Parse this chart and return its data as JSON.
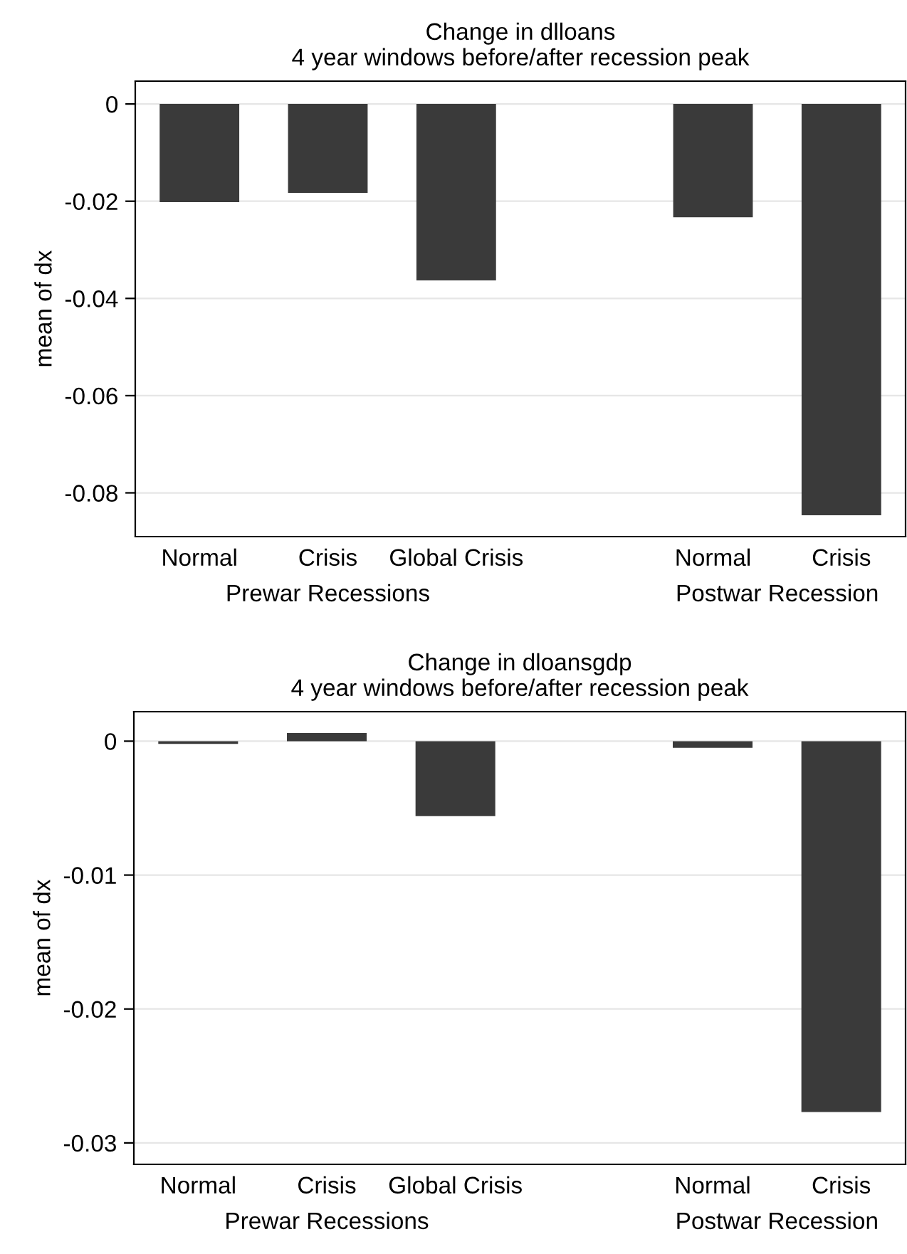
{
  "chart_data": [
    {
      "type": "bar",
      "title": "Change in dlloans\n4 year windows before/after recession peak",
      "ylabel": "mean of dx",
      "categories": [
        "Normal",
        "Crisis",
        "Global Crisis",
        null,
        "Normal",
        "Crisis"
      ],
      "values": [
        -0.0202,
        -0.0183,
        -0.0363,
        null,
        -0.0233,
        -0.0846
      ],
      "color": "#3a3a3a",
      "ylim": [
        -0.089,
        0.0047
      ],
      "yticks": [
        0,
        -0.02,
        -0.04,
        -0.06,
        -0.08
      ],
      "grid": "y",
      "annotations": [
        "Prewar Recessions",
        "Postwar Recession"
      ]
    },
    {
      "type": "bar",
      "title": "Change in dloansgdp\n4 year windows before/after recession peak",
      "ylabel": "mean of dx",
      "categories": [
        "Normal",
        "Crisis",
        "Global Crisis",
        null,
        "Normal",
        "Crisis"
      ],
      "values": [
        -0.0002,
        0.0006,
        -0.0056,
        null,
        -0.0005,
        -0.0277
      ],
      "color": "#3a3a3a",
      "ylim": [
        -0.0316,
        0.0022
      ],
      "yticks": [
        0,
        -0.01,
        -0.02,
        -0.03
      ],
      "grid": "y",
      "annotations": [
        "Prewar Recessions",
        "Postwar Recession"
      ]
    }
  ]
}
